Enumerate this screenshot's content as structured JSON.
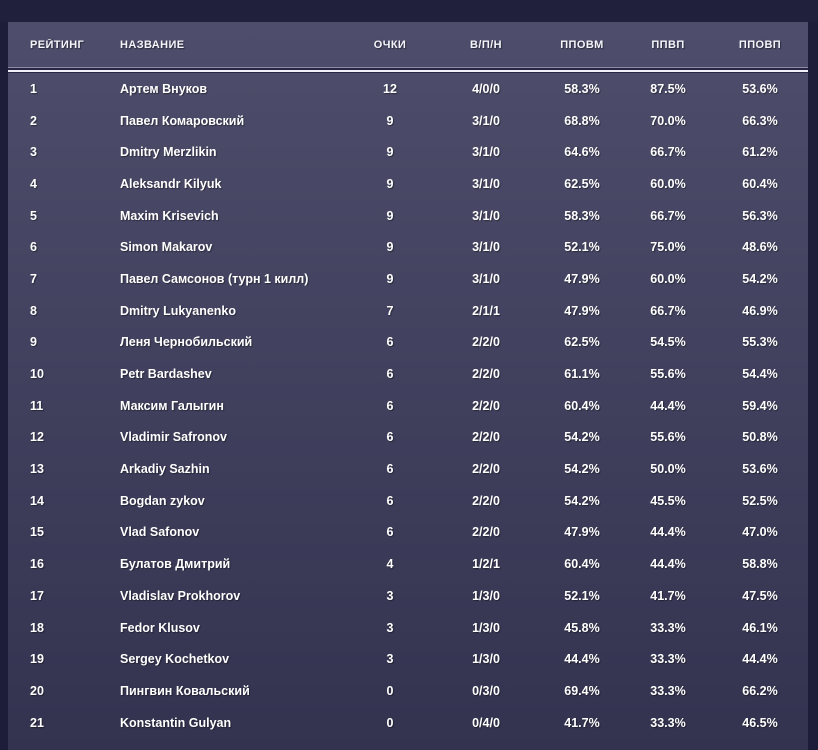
{
  "colors": {
    "page_background": "#1e1d39",
    "top_strip": "#201f3c",
    "panel_gradient_top": "#4e4e6c",
    "panel_gradient_bottom": "#333350",
    "separator_light": "#efeff5",
    "separator_dark": "#262544",
    "text": "#ffffff"
  },
  "table": {
    "columns": [
      "РЕЙТИНГ",
      "НАЗВАНИЕ",
      "ОЧКИ",
      "В/П/Н",
      "ППОВМ",
      "ППВП",
      "ППОВП"
    ],
    "rows": [
      {
        "rating": "1",
        "name": "Артем Внуков",
        "points": "12",
        "wld": "4/0/0",
        "ppovm": "58.3%",
        "ppvp": "87.5%",
        "ppovp": "53.6%"
      },
      {
        "rating": "2",
        "name": "Павел Комаровский",
        "points": "9",
        "wld": "3/1/0",
        "ppovm": "68.8%",
        "ppvp": "70.0%",
        "ppovp": "66.3%"
      },
      {
        "rating": "3",
        "name": "Dmitry Merzlikin",
        "points": "9",
        "wld": "3/1/0",
        "ppovm": "64.6%",
        "ppvp": "66.7%",
        "ppovp": "61.2%"
      },
      {
        "rating": "4",
        "name": "Aleksandr Kilyuk",
        "points": "9",
        "wld": "3/1/0",
        "ppovm": "62.5%",
        "ppvp": "60.0%",
        "ppovp": "60.4%"
      },
      {
        "rating": "5",
        "name": "Maxim Krisevich",
        "points": "9",
        "wld": "3/1/0",
        "ppovm": "58.3%",
        "ppvp": "66.7%",
        "ppovp": "56.3%"
      },
      {
        "rating": "6",
        "name": "Simon Makarov",
        "points": "9",
        "wld": "3/1/0",
        "ppovm": "52.1%",
        "ppvp": "75.0%",
        "ppovp": "48.6%"
      },
      {
        "rating": "7",
        "name": "Павел Самсонов (турн 1 килл)",
        "points": "9",
        "wld": "3/1/0",
        "ppovm": "47.9%",
        "ppvp": "60.0%",
        "ppovp": "54.2%"
      },
      {
        "rating": "8",
        "name": "Dmitry Lukyanenko",
        "points": "7",
        "wld": "2/1/1",
        "ppovm": "47.9%",
        "ppvp": "66.7%",
        "ppovp": "46.9%"
      },
      {
        "rating": "9",
        "name": "Леня Чернобильский",
        "points": "6",
        "wld": "2/2/0",
        "ppovm": "62.5%",
        "ppvp": "54.5%",
        "ppovp": "55.3%"
      },
      {
        "rating": "10",
        "name": "Petr Bardashev",
        "points": "6",
        "wld": "2/2/0",
        "ppovm": "61.1%",
        "ppvp": "55.6%",
        "ppovp": "54.4%"
      },
      {
        "rating": "11",
        "name": "Максим Галыгин",
        "points": "6",
        "wld": "2/2/0",
        "ppovm": "60.4%",
        "ppvp": "44.4%",
        "ppovp": "59.4%"
      },
      {
        "rating": "12",
        "name": "Vladimir Safronov",
        "points": "6",
        "wld": "2/2/0",
        "ppovm": "54.2%",
        "ppvp": "55.6%",
        "ppovp": "50.8%"
      },
      {
        "rating": "13",
        "name": "Arkadiy Sazhin",
        "points": "6",
        "wld": "2/2/0",
        "ppovm": "54.2%",
        "ppvp": "50.0%",
        "ppovp": "53.6%"
      },
      {
        "rating": "14",
        "name": "Bogdan zykov",
        "points": "6",
        "wld": "2/2/0",
        "ppovm": "54.2%",
        "ppvp": "45.5%",
        "ppovp": "52.5%"
      },
      {
        "rating": "15",
        "name": "Vlad Safonov",
        "points": "6",
        "wld": "2/2/0",
        "ppovm": "47.9%",
        "ppvp": "44.4%",
        "ppovp": "47.0%"
      },
      {
        "rating": "16",
        "name": "Булатов Дмитрий",
        "points": "4",
        "wld": "1/2/1",
        "ppovm": "60.4%",
        "ppvp": "44.4%",
        "ppovp": "58.8%"
      },
      {
        "rating": "17",
        "name": "Vladislav Prokhorov",
        "points": "3",
        "wld": "1/3/0",
        "ppovm": "52.1%",
        "ppvp": "41.7%",
        "ppovp": "47.5%"
      },
      {
        "rating": "18",
        "name": "Fedor Klusov",
        "points": "3",
        "wld": "1/3/0",
        "ppovm": "45.8%",
        "ppvp": "33.3%",
        "ppovp": "46.1%"
      },
      {
        "rating": "19",
        "name": "Sergey Kochetkov",
        "points": "3",
        "wld": "1/3/0",
        "ppovm": "44.4%",
        "ppvp": "33.3%",
        "ppovp": "44.4%"
      },
      {
        "rating": "20",
        "name": "Пингвин Ковальский",
        "points": "0",
        "wld": "0/3/0",
        "ppovm": "69.4%",
        "ppvp": "33.3%",
        "ppovp": "66.2%"
      },
      {
        "rating": "21",
        "name": "Konstantin Gulyan",
        "points": "0",
        "wld": "0/4/0",
        "ppovm": "41.7%",
        "ppvp": "33.3%",
        "ppovp": "46.5%"
      }
    ]
  }
}
